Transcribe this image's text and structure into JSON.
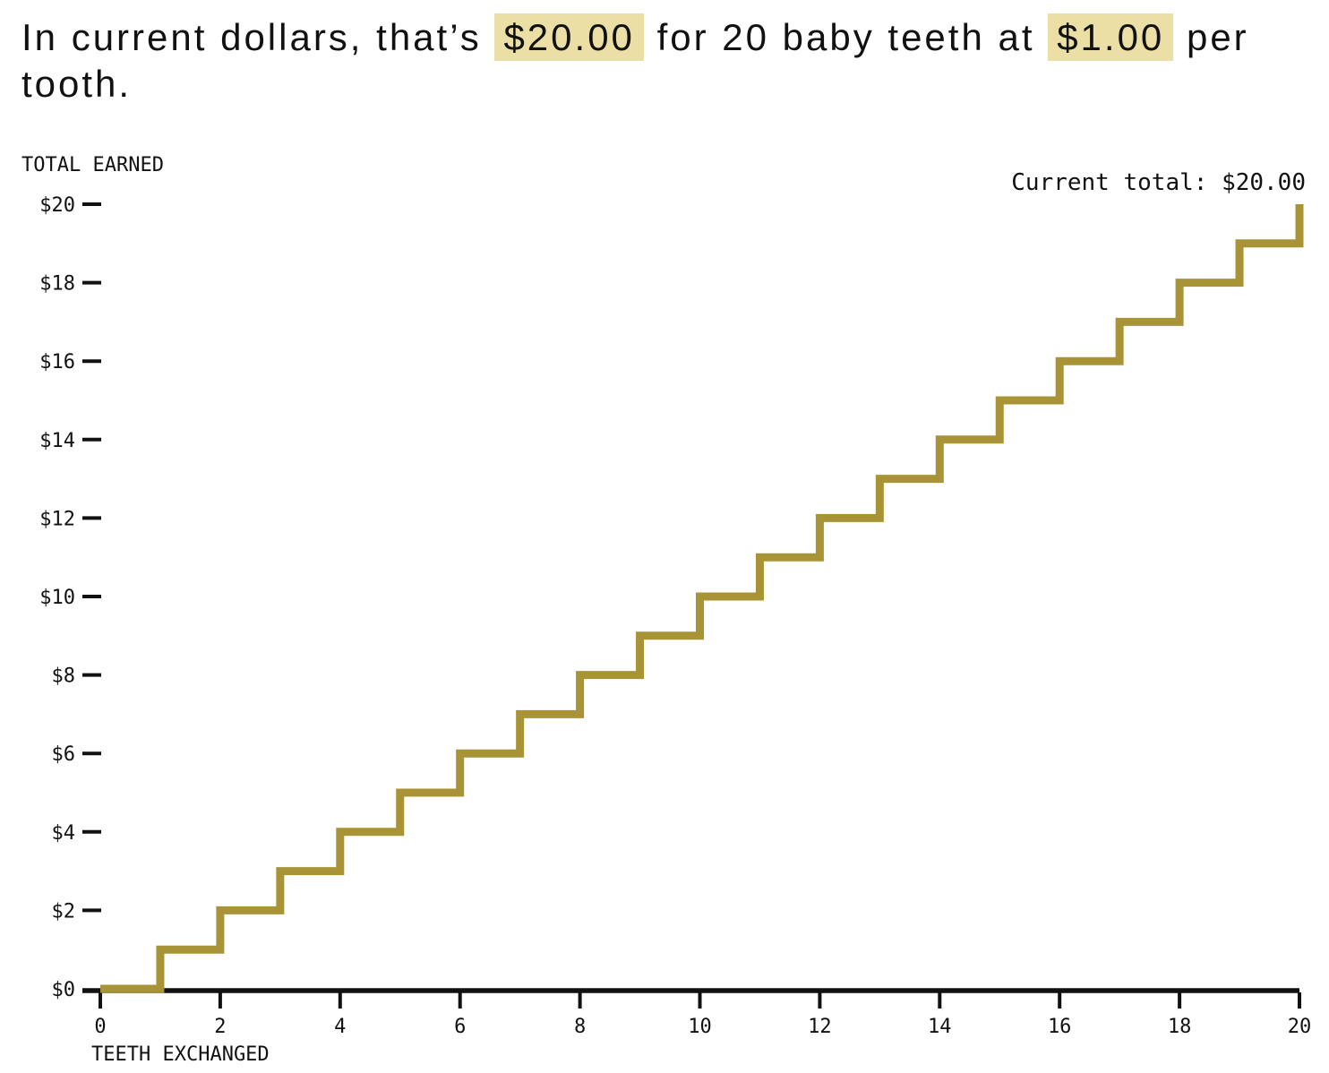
{
  "headline": {
    "parts": [
      {
        "text": "In current dollars, that’s ",
        "highlight": false
      },
      {
        "text": "$20.00",
        "highlight": true
      },
      {
        "text": " for 20 baby teeth at ",
        "highlight": false
      },
      {
        "text": "$1.00",
        "highlight": true
      },
      {
        "text": " per tooth.",
        "highlight": false
      }
    ]
  },
  "colors": {
    "line": "#A89436",
    "highlight": "#ECDFA6",
    "axis": "#111111",
    "text": "#111111"
  },
  "chart_data": {
    "type": "line",
    "step": "after",
    "title": "",
    "xlabel": "TEETH EXCHANGED",
    "ylabel": "TOTAL EARNED",
    "annotation": "Current total: $20.00",
    "x": [
      0,
      1,
      2,
      3,
      4,
      5,
      6,
      7,
      8,
      9,
      10,
      11,
      12,
      13,
      14,
      15,
      16,
      17,
      18,
      19,
      20
    ],
    "y": [
      0,
      1,
      2,
      3,
      4,
      5,
      6,
      7,
      8,
      9,
      10,
      11,
      12,
      13,
      14,
      15,
      16,
      17,
      18,
      19,
      20
    ],
    "xlim": [
      0,
      20
    ],
    "ylim": [
      0,
      20
    ],
    "xticks": {
      "values": [
        0,
        2,
        4,
        6,
        8,
        10,
        12,
        14,
        16,
        18,
        20
      ],
      "labels": [
        "0",
        "2",
        "4",
        "6",
        "8",
        "10",
        "12",
        "14",
        "16",
        "18",
        "20"
      ]
    },
    "yticks": {
      "values": [
        0,
        2,
        4,
        6,
        8,
        10,
        12,
        14,
        16,
        18,
        20
      ],
      "labels": [
        "$0",
        "$2",
        "$4",
        "$6",
        "$8",
        "$10",
        "$12",
        "$14",
        "$16",
        "$18",
        "$20"
      ]
    },
    "grid": false,
    "legend": false,
    "current_total": 20.0,
    "price_per_tooth": 1.0,
    "teeth_count": 20
  }
}
